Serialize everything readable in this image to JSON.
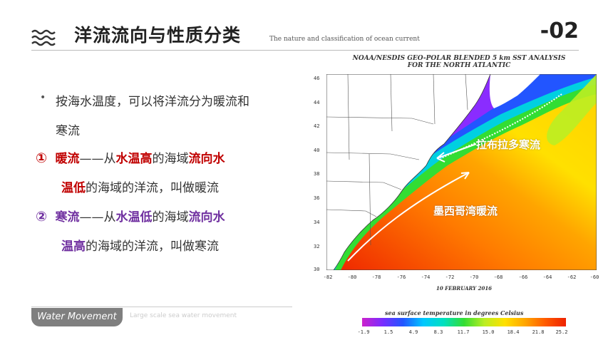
{
  "header": {
    "title": "洋流流向与性质分类",
    "subtitle": "The nature and classification of ocean current",
    "page_number": "-02",
    "icon": "waves-icon"
  },
  "content": {
    "bullet_line1": "按海水温度，可以将洋流分为暖流和",
    "bullet_line2": "寒流",
    "warm": {
      "number": "①",
      "term": "暖流",
      "dash": "——从",
      "from": "水温高",
      "mid": "的海域",
      "to_a": "流向水",
      "to_b": "温低",
      "rest": "的海域的洋流，叫做暖流",
      "color": "#c00000"
    },
    "cold": {
      "number": "②",
      "term": "寒流",
      "dash": "——从",
      "from": "水温低",
      "mid": "的海域",
      "to_a": "流向水",
      "to_b": "温高",
      "rest": "的海域的洋流，叫做寒流",
      "color": "#7030a0"
    }
  },
  "footer": {
    "badge": "Water Movement",
    "subtitle": "Large scale sea water movement"
  },
  "map": {
    "title_line1": "NOAA/NESDIS GEO-POLAR BLENDED 5 km SST ANALYSIS",
    "title_line2": "FOR THE NORTH ATLANTIC",
    "date": "10 FEBRUARY 2016",
    "label_cold": "拉布拉多寒流",
    "label_warm": "墨西哥湾暖流",
    "lat_ticks": [
      "46",
      "44",
      "42",
      "40",
      "38",
      "36",
      "34",
      "32",
      "30"
    ],
    "lon_ticks": [
      "-82",
      "-80",
      "-78",
      "-76",
      "-74",
      "-72",
      "-70",
      "-68",
      "-66",
      "-64",
      "-62",
      "-60"
    ],
    "colorbar_title": "sea surface temperature in degrees Celsius",
    "colorbar_ticks": [
      "-1.9",
      "1.5",
      "4.9",
      "8.3",
      "11.7",
      "15.0",
      "18.4",
      "21.8",
      "25.2"
    ]
  }
}
